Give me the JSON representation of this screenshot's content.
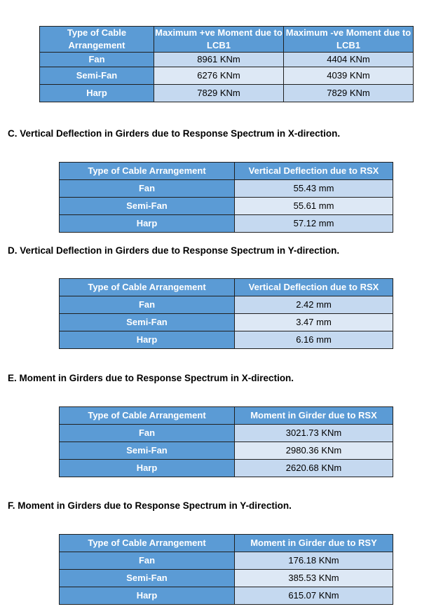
{
  "table1": {
    "headers": [
      "Type of Cable Arrangement",
      "Maximum +ve Moment due to LCB1",
      "Maximum -ve Moment due to LCB1"
    ],
    "rows": [
      {
        "label": "Fan",
        "v1": "8961 KNm",
        "v2": "4404 KNm"
      },
      {
        "label": "Semi-Fan",
        "v1": "6276 KNm",
        "v2": "4039 KNm"
      },
      {
        "label": "Harp",
        "v1": "7829 KNm",
        "v2": "7829 KNm"
      }
    ]
  },
  "sections": [
    {
      "heading": "C.  Vertical Deflection in Girders due to Response Spectrum in X-direction.",
      "headers": [
        "Type of Cable Arrangement",
        "Vertical Deflection due to RSX"
      ],
      "rows": [
        {
          "label": "Fan",
          "value": "55.43 mm"
        },
        {
          "label": "Semi-Fan",
          "value": "55.61 mm"
        },
        {
          "label": "Harp",
          "value": "57.12 mm"
        }
      ]
    },
    {
      "heading": "D.  Vertical Deflection in Girders due to Response Spectrum in Y-direction.",
      "headers": [
        "Type of Cable Arrangement",
        "Vertical Deflection due to RSX"
      ],
      "rows": [
        {
          "label": "Fan",
          "value": "2.42 mm"
        },
        {
          "label": "Semi-Fan",
          "value": "3.47 mm"
        },
        {
          "label": "Harp",
          "value": "6.16 mm"
        }
      ]
    },
    {
      "heading": "E.  Moment in Girders due to Response Spectrum in X-direction.",
      "headers": [
        "Type of Cable Arrangement",
        "Moment in Girder due to RSX"
      ],
      "rows": [
        {
          "label": "Fan",
          "value": "3021.73 KNm"
        },
        {
          "label": "Semi-Fan",
          "value": "2980.36 KNm"
        },
        {
          "label": "Harp",
          "value": "2620.68 KNm"
        }
      ]
    },
    {
      "heading": "F.  Moment in Girders due to Response Spectrum in Y-direction.",
      "headers": [
        "Type of Cable Arrangement",
        "Moment in Girder due to RSY"
      ],
      "rows": [
        {
          "label": "Fan",
          "value": "176.18 KNm"
        },
        {
          "label": "Semi-Fan",
          "value": "385.53 KNm"
        },
        {
          "label": "Harp",
          "value": "615.07 KNm"
        }
      ]
    }
  ]
}
